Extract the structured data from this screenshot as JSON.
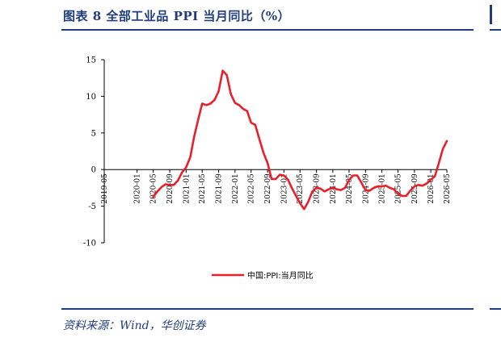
{
  "figure": {
    "title": "图表 8   全部工业品 PPI 当月同比（%）",
    "source": "资料来源：Wind，华创证券"
  },
  "colors": {
    "title": "#1f3d7a",
    "series": "#e8202a",
    "axis": "#000000"
  },
  "chart_data": {
    "type": "line",
    "title": "",
    "xlabel": "",
    "ylabel": "",
    "ylim": [
      -10,
      15
    ],
    "yticks": [
      -10,
      -5,
      0,
      5,
      10,
      15
    ],
    "grid": false,
    "legend_position": "bottom",
    "xtick_labels": [
      "2019-05",
      "2020-01",
      "2020-05",
      "2020-09",
      "2021-01",
      "2021-05",
      "2021-09",
      "2022-01",
      "2022-05",
      "2022-09",
      "2023-01",
      "2023-05",
      "2023-09",
      "2024-01",
      "2024-05",
      "2024-09",
      "2025-01",
      "2025-05",
      "2025-09",
      "2026-01",
      "2026-05"
    ],
    "xtick_labels_display": [
      "2019-05",
      "2020-01",
      "2020-05",
      "2020-09",
      "2021-01",
      "2021-05",
      "2021-09",
      "2022-01",
      "2022-05",
      "2022-09",
      "2023-01",
      "2023-05",
      "2023-09",
      "2024-01",
      "2024-05",
      "2024-09",
      "2025-01",
      "2025-05",
      "2025-09",
      "2026-01",
      "2026-05"
    ],
    "series": [
      {
        "name": "中国:PPI:当月同比",
        "x": [
          "2020-05",
          "2020-06",
          "2020-07",
          "2020-08",
          "2020-09",
          "2020-10",
          "2020-11",
          "2020-12",
          "2021-01",
          "2021-02",
          "2021-03",
          "2021-04",
          "2021-05",
          "2021-06",
          "2021-07",
          "2021-08",
          "2021-09",
          "2021-10",
          "2021-11",
          "2021-12",
          "2022-01",
          "2022-02",
          "2022-03",
          "2022-04",
          "2022-05",
          "2022-06",
          "2022-07",
          "2022-08",
          "2022-09",
          "2022-10",
          "2022-11",
          "2022-12",
          "2023-01",
          "2023-02",
          "2023-03",
          "2023-04",
          "2023-05",
          "2023-06",
          "2023-07",
          "2023-08",
          "2023-09",
          "2023-10",
          "2023-11",
          "2023-12",
          "2024-01",
          "2024-02",
          "2024-03",
          "2024-04",
          "2024-05",
          "2024-06",
          "2024-07",
          "2024-08",
          "2024-09",
          "2024-10",
          "2024-11",
          "2024-12",
          "2025-01",
          "2025-02",
          "2025-03",
          "2025-04",
          "2025-05",
          "2025-06",
          "2025-07",
          "2025-08",
          "2025-09",
          "2025-10",
          "2025-11",
          "2025-12",
          "2026-01",
          "2026-02",
          "2026-03",
          "2026-04",
          "2026-05"
        ],
        "values": [
          -3.7,
          -3.0,
          -2.4,
          -2.0,
          -2.1,
          -2.1,
          -1.5,
          -0.4,
          0.3,
          1.7,
          4.4,
          6.8,
          9.0,
          8.8,
          9.0,
          9.5,
          10.7,
          13.5,
          12.9,
          10.3,
          9.1,
          8.8,
          8.3,
          8.0,
          6.4,
          6.1,
          4.2,
          2.3,
          0.9,
          -1.3,
          -1.3,
          -0.7,
          -0.8,
          -1.4,
          -2.5,
          -3.6,
          -4.6,
          -5.4,
          -4.4,
          -3.0,
          -2.5,
          -2.6,
          -3.0,
          -2.7,
          -2.5,
          -2.7,
          -2.8,
          -2.5,
          -1.4,
          -0.8,
          -0.8,
          -1.8,
          -2.8,
          -2.9,
          -2.5,
          -2.3,
          -2.3,
          -2.2,
          -2.5,
          -2.7,
          -3.3,
          -3.6,
          -3.6,
          -2.9,
          -2.3,
          -2.1,
          -2.2,
          -1.9,
          -1.4,
          -0.9,
          0.8,
          2.8,
          3.9
        ]
      }
    ]
  }
}
